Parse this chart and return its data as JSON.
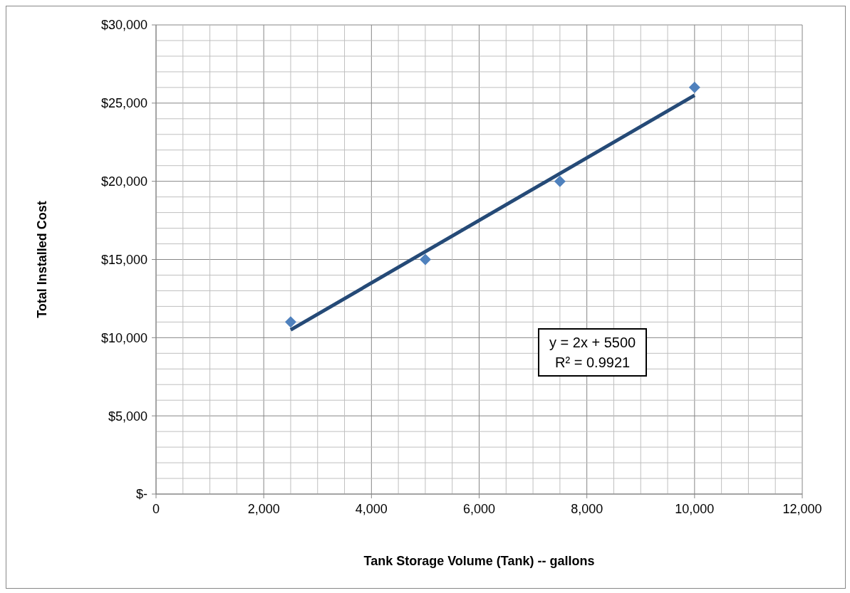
{
  "chart_data": {
    "type": "scatter",
    "xlabel": "Tank Storage Volume (Tank) -- gallons",
    "ylabel": "Total Installed Cost",
    "series": [
      {
        "color": "#4f81bd",
        "marker": "diamond",
        "x": [
          2500,
          5000,
          7500,
          10000
        ],
        "values": [
          11000,
          15000,
          20000,
          26000
        ]
      },
      {
        "type": "line",
        "color": "#254a77",
        "marker": "none",
        "x": [
          2500,
          10000
        ],
        "values": [
          10500,
          25500
        ]
      }
    ],
    "annotations": [
      "y = 2x + 5500",
      "R² = 0.9921"
    ],
    "xlim": [
      0,
      12000
    ],
    "xticks": [
      {
        "value": 0,
        "label": "0"
      },
      {
        "value": 2000,
        "label": "2,000"
      },
      {
        "value": 4000,
        "label": "4,000"
      },
      {
        "value": 6000,
        "label": "6,000"
      },
      {
        "value": 8000,
        "label": "8,000"
      },
      {
        "value": 10000,
        "label": "10,000"
      },
      {
        "value": 12000,
        "label": "12,000"
      }
    ],
    "ylim": [
      0,
      30000
    ],
    "yticks": [
      {
        "value": 0,
        "label": "$-"
      },
      {
        "value": 5000,
        "label": "$5,000"
      },
      {
        "value": 10000,
        "label": "$10,000"
      },
      {
        "value": 15000,
        "label": "$15,000"
      },
      {
        "value": 20000,
        "label": "$20,000"
      },
      {
        "value": 25000,
        "label": "$25,000"
      },
      {
        "value": 30000,
        "label": "$30,000"
      }
    ],
    "grid": true
  }
}
